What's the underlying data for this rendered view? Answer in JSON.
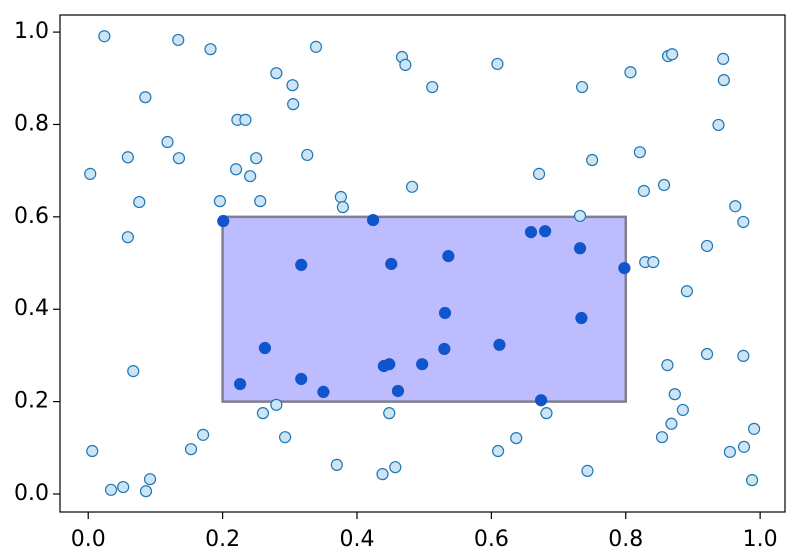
{
  "chart_data": {
    "type": "scatter",
    "x": [
      0.003,
      0.024,
      0.006,
      0.034,
      0.052,
      0.059,
      0.059,
      0.067,
      0.076,
      0.085,
      0.086,
      0.092,
      0.118,
      0.134,
      0.135,
      0.153,
      0.171,
      0.182,
      0.196,
      0.22,
      0.222,
      0.234,
      0.241,
      0.25,
      0.256,
      0.26,
      0.28,
      0.28,
      0.293,
      0.304,
      0.305,
      0.326,
      0.339,
      0.37,
      0.376,
      0.379,
      0.438,
      0.448,
      0.457,
      0.467,
      0.472,
      0.482,
      0.512,
      0.609,
      0.61,
      0.637,
      0.671,
      0.682,
      0.732,
      0.735,
      0.743,
      0.75,
      0.807,
      0.821,
      0.827,
      0.829,
      0.841,
      0.854,
      0.857,
      0.862,
      0.863,
      0.869,
      0.868,
      0.873,
      0.885,
      0.891,
      0.921,
      0.921,
      0.938,
      0.945,
      0.946,
      0.955,
      0.963,
      0.975,
      0.975,
      0.976,
      0.988,
      0.991,
      0.201,
      0.226,
      0.263,
      0.317,
      0.317,
      0.35,
      0.424,
      0.44,
      0.448,
      0.451,
      0.461,
      0.497,
      0.53,
      0.531,
      0.536,
      0.612,
      0.659,
      0.68,
      0.674,
      0.732,
      0.734,
      0.798
    ],
    "y": [
      0.693,
      0.991,
      0.093,
      0.009,
      0.015,
      0.729,
      0.556,
      0.266,
      0.632,
      0.859,
      0.006,
      0.032,
      0.762,
      0.983,
      0.727,
      0.097,
      0.128,
      0.963,
      0.634,
      0.703,
      0.81,
      0.81,
      0.688,
      0.727,
      0.634,
      0.175,
      0.911,
      0.193,
      0.123,
      0.885,
      0.844,
      0.734,
      0.968,
      0.063,
      0.643,
      0.621,
      0.043,
      0.175,
      0.058,
      0.946,
      0.929,
      0.665,
      0.881,
      0.931,
      0.093,
      0.121,
      0.693,
      0.175,
      0.602,
      0.881,
      0.05,
      0.723,
      0.913,
      0.74,
      0.656,
      0.502,
      0.502,
      0.123,
      0.669,
      0.279,
      0.948,
      0.952,
      0.152,
      0.216,
      0.182,
      0.439,
      0.537,
      0.303,
      0.799,
      0.942,
      0.896,
      0.091,
      0.623,
      0.589,
      0.299,
      0.102,
      0.03,
      0.141,
      0.591,
      0.238,
      0.316,
      0.496,
      0.249,
      0.221,
      0.593,
      0.277,
      0.281,
      0.498,
      0.223,
      0.281,
      0.314,
      0.392,
      0.515,
      0.323,
      0.567,
      0.569,
      0.203,
      0.532,
      0.381,
      0.489
    ],
    "selection": {
      "x": [
        0.2,
        0.8
      ],
      "y": [
        0.2,
        0.6
      ],
      "color": "#bcbcff",
      "edge_color": "#7f7f8f"
    },
    "edge_color": "#1f77b4",
    "face_color": "#cde4f4",
    "selected_color": "#1155cc",
    "xlim": [
      -0.042,
      1.037
    ],
    "ylim": [
      -0.039,
      1.037
    ],
    "xticks": [
      {
        "value": 0,
        "label": "0.0"
      },
      0.2,
      0.4,
      0.6,
      0.8,
      {
        "value": 1,
        "label": "1.0"
      }
    ],
    "yticks": [
      {
        "value": 0,
        "label": "0.0"
      },
      0.2,
      0.4,
      0.6,
      0.8,
      {
        "value": 1,
        "label": "1.0"
      }
    ],
    "grid": false
  }
}
